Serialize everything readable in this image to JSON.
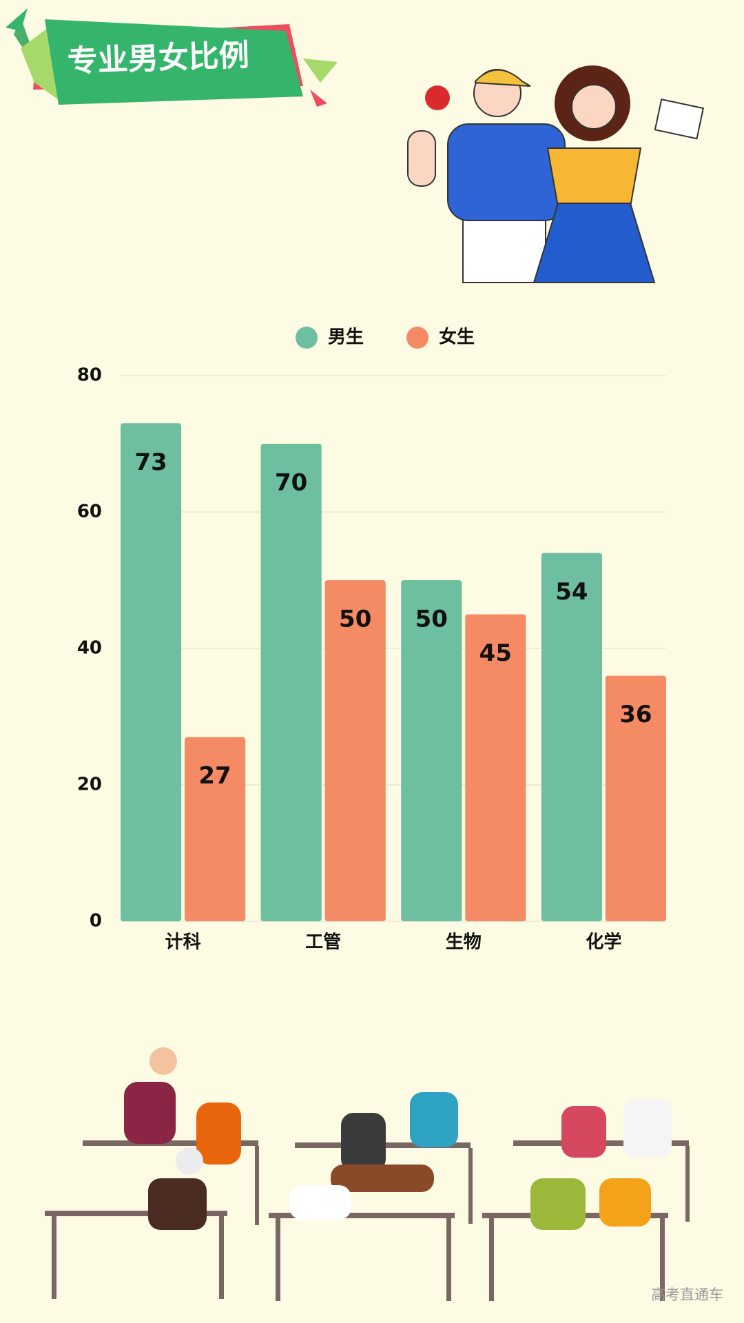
{
  "chart_data": {
    "type": "bar",
    "title": "专业男女比例",
    "categories": [
      "计科",
      "工管",
      "生物",
      "化学"
    ],
    "series": [
      {
        "name": "男生",
        "color": "#6dbf9f",
        "values": [
          73,
          70,
          50,
          54
        ]
      },
      {
        "name": "女生",
        "color": "#f58b65",
        "values": [
          27,
          50,
          45,
          36
        ]
      }
    ],
    "ylim": [
      0,
      80
    ],
    "yticks": [
      0,
      20,
      40,
      60,
      80
    ],
    "grid": true,
    "watermark": "高考直通车"
  }
}
